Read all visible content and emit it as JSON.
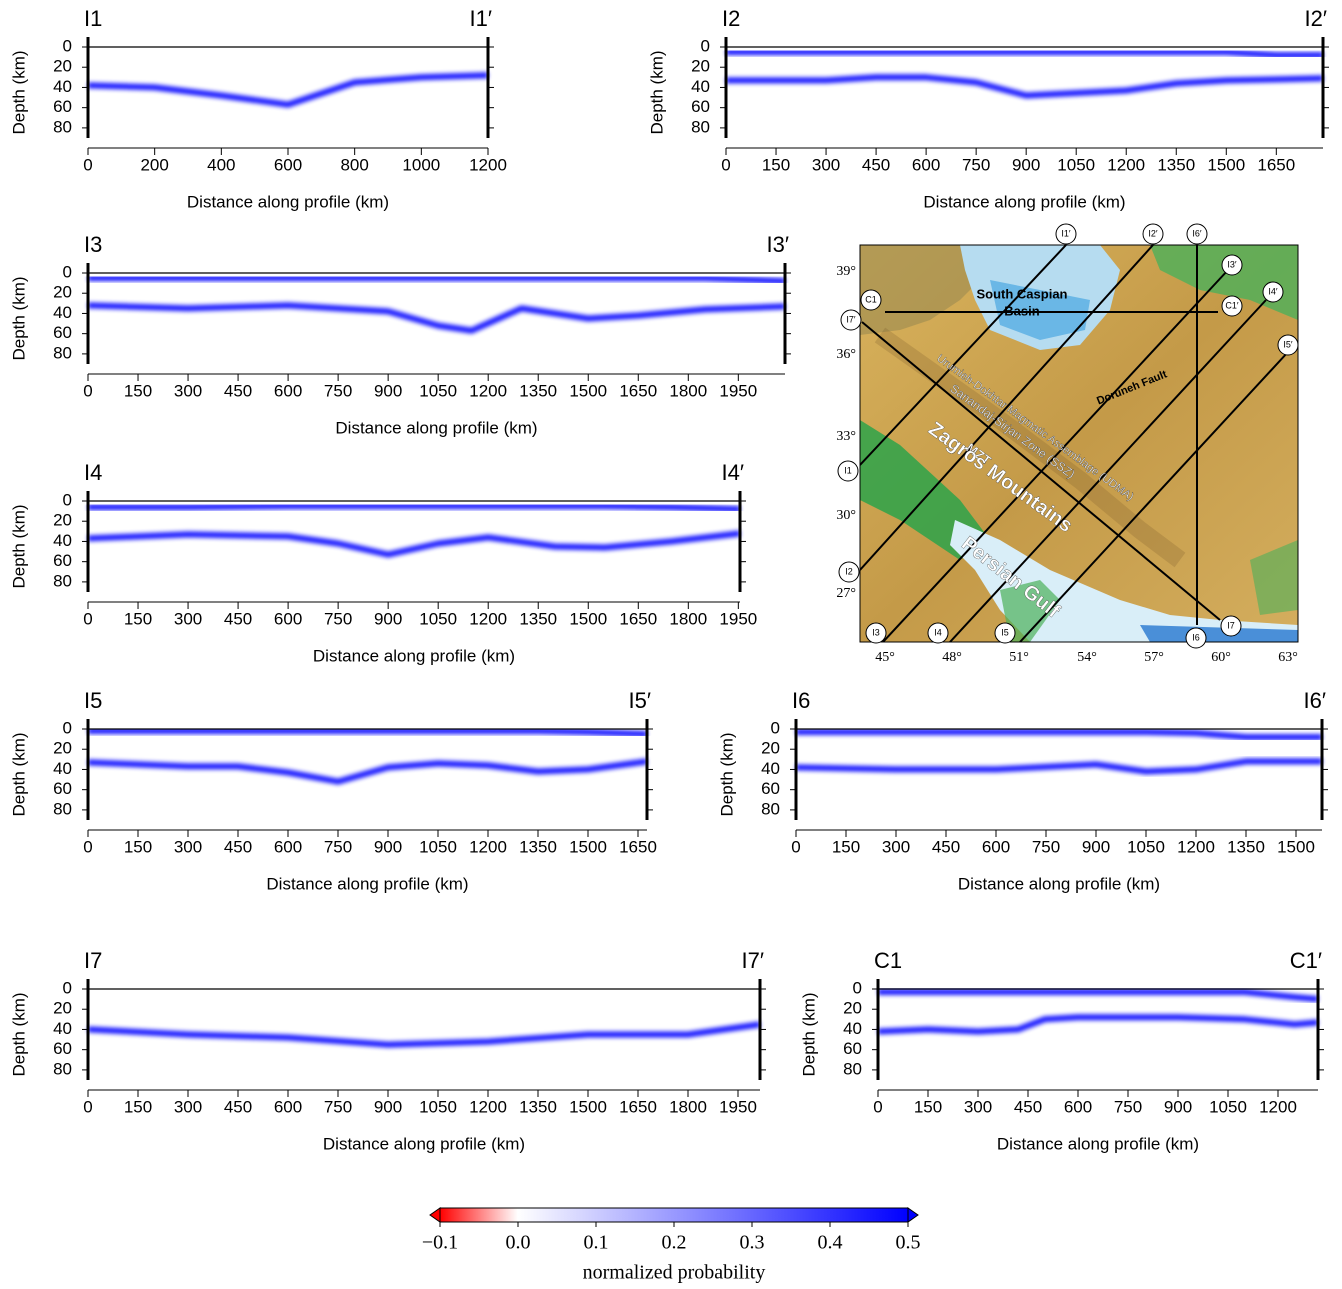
{
  "chart_data": [
    {
      "type": "profile",
      "start_label": "I1",
      "end_label": "I1′",
      "xlabel": "Distance along profile (km)",
      "ylabel": "Depth (km)",
      "xlim": [
        0,
        1200
      ],
      "xticks": [
        0,
        200,
        400,
        600,
        800,
        1000,
        1200
      ],
      "ylim": [
        0,
        90
      ],
      "yticks": [
        0,
        20,
        40,
        60,
        80
      ],
      "x": [
        0,
        200,
        400,
        600,
        800,
        1000,
        1200
      ],
      "series": [
        {
          "color": "#0000ff",
          "values": [
            5,
            5,
            5,
            5,
            5,
            5,
            5
          ]
        },
        {
          "color": "#0000ff",
          "values": [
            38,
            40,
            48,
            57,
            35,
            30,
            28
          ]
        }
      ]
    },
    {
      "type": "profile",
      "start_label": "I2",
      "end_label": "I2′",
      "xlabel": "Distance along profile (km)",
      "ylabel": "Depth (km)",
      "xlim": [
        0,
        1790
      ],
      "xticks": [
        0,
        150,
        300,
        450,
        600,
        750,
        900,
        1050,
        1200,
        1350,
        1500,
        1650
      ],
      "ylim": [
        0,
        90
      ],
      "yticks": [
        0,
        20,
        40,
        60,
        80
      ],
      "x": [
        0,
        300,
        450,
        600,
        750,
        900,
        1200,
        1350,
        1500,
        1650,
        1790
      ],
      "series": [
        {
          "color": "#0000ff",
          "values": [
            5,
            5,
            5,
            5,
            5,
            5,
            5,
            5,
            5,
            8,
            8
          ]
        },
        {
          "color": "#0000ff",
          "values": [
            33,
            33,
            30,
            30,
            35,
            48,
            43,
            36,
            33,
            32,
            31
          ]
        }
      ]
    },
    {
      "type": "profile",
      "start_label": "I3",
      "end_label": "I3′",
      "xlabel": "Distance along profile (km)",
      "ylabel": "Depth (km)",
      "xlim": [
        0,
        2090
      ],
      "xticks": [
        0,
        150,
        300,
        450,
        600,
        750,
        900,
        1050,
        1200,
        1350,
        1500,
        1650,
        1800,
        1950
      ],
      "ylim": [
        0,
        90
      ],
      "yticks": [
        0,
        20,
        40,
        60,
        80
      ],
      "x": [
        0,
        300,
        600,
        900,
        1050,
        1150,
        1300,
        1500,
        1650,
        1850,
        2090
      ],
      "series": [
        {
          "color": "#0000ff",
          "values": [
            5,
            5,
            5,
            5,
            5,
            5,
            5,
            5,
            5,
            5,
            8
          ]
        },
        {
          "color": "#0000ff",
          "values": [
            32,
            35,
            32,
            38,
            52,
            57,
            35,
            45,
            42,
            36,
            33
          ]
        }
      ]
    },
    {
      "type": "profile",
      "start_label": "I4",
      "end_label": "I4′",
      "xlabel": "Distance along profile (km)",
      "ylabel": "Depth (km)",
      "xlim": [
        0,
        1955
      ],
      "xticks": [
        0,
        150,
        300,
        450,
        600,
        750,
        900,
        1050,
        1200,
        1350,
        1500,
        1650,
        1800,
        1950
      ],
      "ylim": [
        0,
        90
      ],
      "yticks": [
        0,
        20,
        40,
        60,
        80
      ],
      "x": [
        0,
        300,
        600,
        750,
        900,
        1050,
        1200,
        1400,
        1550,
        1750,
        1955
      ],
      "series": [
        {
          "color": "#0000ff",
          "values": [
            6,
            6,
            5,
            5,
            5,
            5,
            5,
            5,
            5,
            6,
            8
          ]
        },
        {
          "color": "#0000ff",
          "values": [
            37,
            33,
            35,
            42,
            53,
            42,
            36,
            45,
            46,
            40,
            32
          ]
        }
      ]
    },
    {
      "type": "profile",
      "start_label": "I5",
      "end_label": "I5′",
      "xlabel": "Distance along profile (km)",
      "ylabel": "Depth (km)",
      "xlim": [
        0,
        1677
      ],
      "xticks": [
        0,
        150,
        300,
        450,
        600,
        750,
        900,
        1050,
        1200,
        1350,
        1500,
        1650
      ],
      "ylim": [
        0,
        90
      ],
      "yticks": [
        0,
        20,
        40,
        60,
        80
      ],
      "x": [
        0,
        150,
        300,
        450,
        600,
        750,
        900,
        1050,
        1200,
        1350,
        1500,
        1677
      ],
      "series": [
        {
          "color": "#0000ff",
          "values": [
            2,
            2,
            2,
            2,
            2,
            2,
            2,
            2,
            2,
            2,
            3,
            5
          ]
        },
        {
          "color": "#0000ff",
          "values": [
            33,
            35,
            37,
            37,
            43,
            52,
            38,
            34,
            36,
            42,
            40,
            32
          ]
        }
      ]
    },
    {
      "type": "profile",
      "start_label": "I6",
      "end_label": "I6′",
      "xlabel": "Distance along profile (km)",
      "ylabel": "Depth (km)",
      "xlim": [
        0,
        1578
      ],
      "xticks": [
        0,
        150,
        300,
        450,
        600,
        750,
        900,
        1050,
        1200,
        1350,
        1500
      ],
      "ylim": [
        0,
        90
      ],
      "yticks": [
        0,
        20,
        40,
        60,
        80
      ],
      "x": [
        0,
        300,
        600,
        900,
        1050,
        1200,
        1350,
        1578
      ],
      "series": [
        {
          "color": "#0000ff",
          "values": [
            3,
            3,
            3,
            3,
            3,
            4,
            8,
            8
          ]
        },
        {
          "color": "#0000ff",
          "values": [
            38,
            40,
            40,
            35,
            42,
            40,
            32,
            32
          ]
        }
      ]
    },
    {
      "type": "profile",
      "start_label": "I7",
      "end_label": "I7′",
      "xlabel": "Distance along profile (km)",
      "ylabel": "Depth (km)",
      "xlim": [
        0,
        2016
      ],
      "xticks": [
        0,
        150,
        300,
        450,
        600,
        750,
        900,
        1050,
        1200,
        1350,
        1500,
        1650,
        1800,
        1950
      ],
      "ylim": [
        0,
        90
      ],
      "yticks": [
        0,
        20,
        40,
        60,
        80
      ],
      "x": [
        0,
        300,
        600,
        900,
        1200,
        1500,
        1800,
        2016
      ],
      "series": [
        {
          "color": "#0000ff",
          "values": [
            3,
            3,
            3,
            3,
            3,
            3,
            3,
            3
          ]
        },
        {
          "color": "#0000ff",
          "values": [
            40,
            45,
            48,
            55,
            52,
            45,
            45,
            35
          ]
        }
      ]
    },
    {
      "type": "profile",
      "start_label": "C1",
      "end_label": "C1′",
      "xlabel": "Distance along profile (km)",
      "ylabel": "Depth (km)",
      "xlim": [
        0,
        1320
      ],
      "xticks": [
        0,
        150,
        300,
        450,
        600,
        750,
        900,
        1050,
        1200
      ],
      "ylim": [
        0,
        90
      ],
      "yticks": [
        0,
        20,
        40,
        60,
        80
      ],
      "x": [
        0,
        150,
        300,
        420,
        500,
        600,
        900,
        1100,
        1250,
        1320
      ],
      "series": [
        {
          "color": "#0000ff",
          "values": [
            3,
            3,
            3,
            3,
            3,
            3,
            3,
            3,
            8,
            10
          ]
        },
        {
          "color": "#0000ff",
          "values": [
            42,
            40,
            42,
            40,
            30,
            28,
            28,
            30,
            35,
            33
          ]
        }
      ]
    }
  ],
  "colorbar": {
    "label": "normalized probability",
    "lim": [
      -0.1,
      0.5
    ],
    "colors": [
      "#ff0000",
      "#ffffff",
      "#0000ff"
    ],
    "ticks": [
      {
        "value": -0.1,
        "label": "−0.1"
      },
      {
        "value": 0,
        "label": "0.0"
      },
      0.1,
      0.2,
      0.3,
      0.4,
      0.5
    ]
  },
  "map": {
    "lat_labels": [
      "39°",
      "36°",
      "33°",
      "30°",
      "27°"
    ],
    "lon_labels": [
      "45°",
      "48°",
      "51°",
      "54°",
      "57°",
      "60°",
      "63°"
    ],
    "profile_labels": [
      "I1′",
      "I2′",
      "I6′",
      "I3′",
      "C1′",
      "I4′",
      "I5′",
      "C1",
      "I7′",
      "I1",
      "I2",
      "I3",
      "I4",
      "I5",
      "I6",
      "I7"
    ],
    "region_labels": [
      "South Caspian",
      "Basin",
      "Doruneh Fault",
      "Urumieh-Dokhtar Magmatic Assemblage (UDMA)",
      "Sanandaj-Sirjan Zone (SSZ)",
      "MZT",
      "Zagros Mountains",
      "Persian Gulf"
    ]
  }
}
